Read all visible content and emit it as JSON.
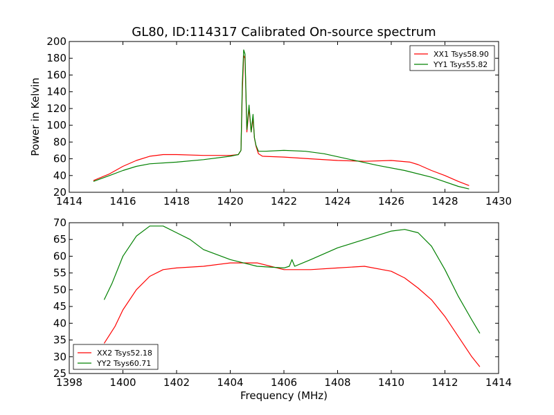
{
  "figure": {
    "title": "GL80, ID:114317 Calibrated On-source spectrum"
  },
  "chart_data": [
    {
      "type": "line",
      "title": "GL80, ID:114317 Calibrated On-source spectrum",
      "xlabel": "",
      "ylabel": "Power in Kelvin",
      "xlim": [
        1414,
        1430
      ],
      "ylim": [
        20,
        200
      ],
      "xticks": [
        1414,
        1416,
        1418,
        1420,
        1422,
        1424,
        1426,
        1428,
        1430
      ],
      "yticks": [
        20,
        40,
        60,
        80,
        100,
        120,
        140,
        160,
        180,
        200
      ],
      "grid": false,
      "legend_position": "upper right",
      "series": [
        {
          "name": "XX1 Tsys58.90",
          "color": "#ff0000",
          "x": [
            1414.9,
            1415.5,
            1416.0,
            1416.5,
            1417.0,
            1417.5,
            1418.0,
            1419.0,
            1420.0,
            1420.3,
            1420.4,
            1420.45,
            1420.5,
            1420.55,
            1420.62,
            1420.7,
            1420.78,
            1420.85,
            1420.9,
            1420.96,
            1421.05,
            1421.2,
            1422.0,
            1423.0,
            1424.0,
            1425.0,
            1426.0,
            1426.7,
            1427.0,
            1427.5,
            1428.0,
            1428.5,
            1428.9
          ],
          "y": [
            34,
            42,
            51,
            58,
            63,
            65,
            65,
            64,
            64,
            65,
            70,
            140,
            183,
            180,
            92,
            120,
            92,
            108,
            85,
            75,
            66,
            63,
            62,
            60,
            58,
            57,
            58,
            56,
            53,
            46,
            40,
            33,
            28
          ]
        },
        {
          "name": "YY1 Tsys55.82",
          "color": "#008000",
          "x": [
            1414.9,
            1415.5,
            1416.0,
            1416.5,
            1417.0,
            1418.0,
            1419.0,
            1420.0,
            1420.3,
            1420.4,
            1420.45,
            1420.5,
            1420.55,
            1420.62,
            1420.7,
            1420.78,
            1420.85,
            1420.9,
            1420.96,
            1421.05,
            1421.3,
            1422.0,
            1422.8,
            1423.5,
            1424.5,
            1425.5,
            1426.5,
            1427.5,
            1428.5,
            1428.9
          ],
          "y": [
            33,
            40,
            46,
            51,
            54,
            56,
            59,
            63,
            65,
            70,
            150,
            190,
            185,
            95,
            124,
            92,
            113,
            85,
            76,
            69,
            69,
            70,
            69,
            66,
            59,
            52,
            46,
            38,
            27,
            24
          ]
        }
      ]
    },
    {
      "type": "line",
      "title": "",
      "xlabel": "Frequency (MHz)",
      "ylabel": "",
      "xlim": [
        1398,
        1414
      ],
      "ylim": [
        25,
        70
      ],
      "xticks": [
        1398,
        1400,
        1402,
        1404,
        1406,
        1408,
        1410,
        1412,
        1414
      ],
      "yticks": [
        25,
        30,
        35,
        40,
        45,
        50,
        55,
        60,
        65,
        70
      ],
      "grid": false,
      "legend_position": "lower left",
      "series": [
        {
          "name": "XX2 Tsys52.18",
          "color": "#ff0000",
          "x": [
            1399.3,
            1399.7,
            1400.0,
            1400.5,
            1401.0,
            1401.5,
            1402.0,
            1403.0,
            1404.0,
            1405.0,
            1406.0,
            1407.0,
            1408.0,
            1409.0,
            1410.0,
            1410.5,
            1411.0,
            1411.5,
            1412.0,
            1412.5,
            1413.0,
            1413.3
          ],
          "y": [
            34,
            39,
            44,
            50,
            54,
            56,
            56.5,
            57,
            58,
            58,
            56,
            56,
            56.5,
            57,
            55.5,
            53.5,
            50.5,
            47,
            42,
            36,
            30,
            27
          ]
        },
        {
          "name": "YY2 Tsys60.71",
          "color": "#008000",
          "x": [
            1399.3,
            1399.6,
            1400.0,
            1400.5,
            1401.0,
            1401.5,
            1402.0,
            1402.5,
            1403.0,
            1404.0,
            1405.0,
            1406.0,
            1406.2,
            1406.3,
            1406.4,
            1407.0,
            1408.0,
            1409.0,
            1410.0,
            1410.5,
            1411.0,
            1411.5,
            1412.0,
            1412.5,
            1413.0,
            1413.3
          ],
          "y": [
            47,
            52,
            60,
            66,
            69,
            69,
            67,
            65,
            62,
            59,
            57,
            56.5,
            57,
            59,
            57,
            59,
            62.5,
            65,
            67.5,
            68,
            67,
            63,
            56,
            48,
            41,
            37
          ]
        }
      ]
    }
  ]
}
